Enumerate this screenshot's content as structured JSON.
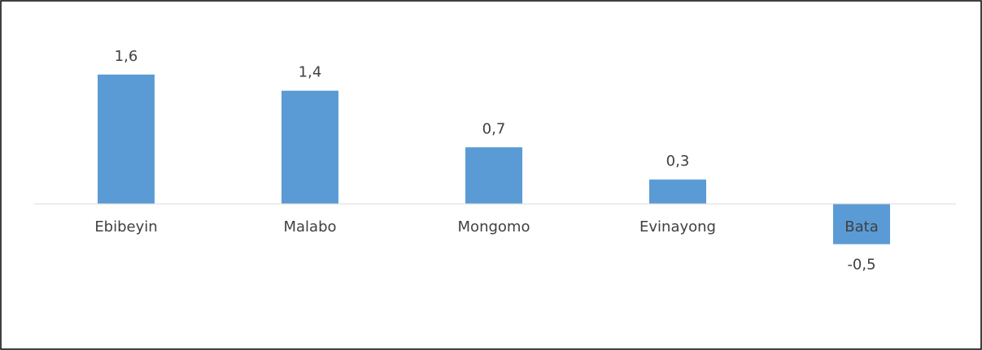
{
  "chart_data": {
    "type": "bar",
    "categories": [
      "Ebibeyin",
      "Malabo",
      "Mongomo",
      "Evinayong",
      "Bata"
    ],
    "values": [
      1.6,
      1.4,
      0.7,
      0.3,
      -0.5
    ],
    "value_labels": [
      "1,6",
      "1,4",
      "0,7",
      "0,3",
      "-0,5"
    ],
    "color": "#5b9bd5",
    "ylim": [
      -1.8,
      2
    ]
  }
}
